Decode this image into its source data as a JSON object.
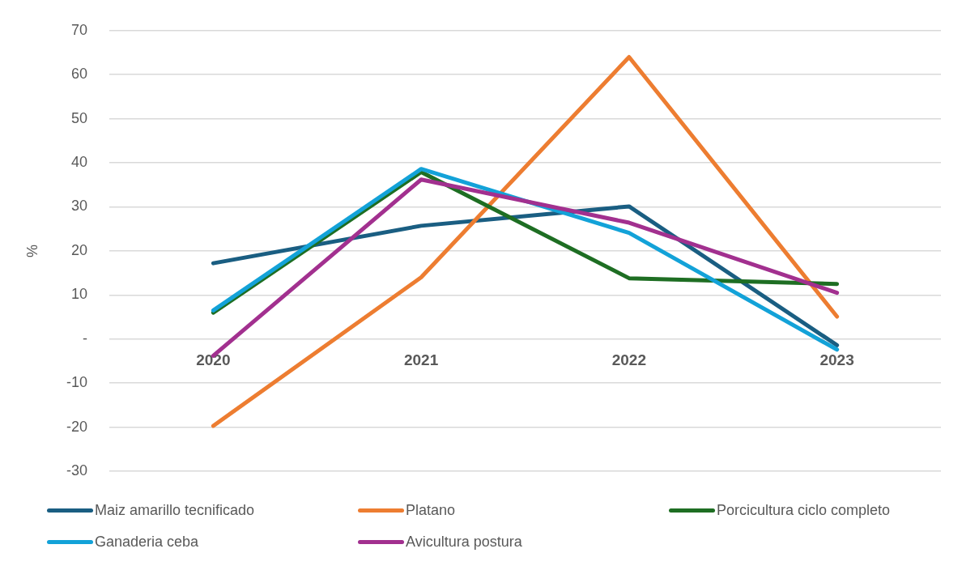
{
  "chart_data": {
    "type": "line",
    "ylabel": "%",
    "categories": [
      "2020",
      "2021",
      "2022",
      "2023"
    ],
    "series": [
      {
        "name": "Maiz amarillo tecnificado",
        "color": "#1a5e82",
        "values": [
          17.2,
          25.7,
          30.1,
          -1.4
        ]
      },
      {
        "name": "Platano",
        "color": "#ed7d31",
        "values": [
          -19.7,
          14.0,
          64.0,
          5.1
        ]
      },
      {
        "name": "Porcicultura ciclo completo",
        "color": "#1e6e23",
        "values": [
          6.0,
          37.9,
          13.8,
          12.5
        ]
      },
      {
        "name": "Ganaderia ceba",
        "color": "#13a2d8",
        "values": [
          6.5,
          38.6,
          24.1,
          -2.4
        ]
      },
      {
        "name": "Avicultura postura",
        "color": "#a2308f",
        "values": [
          -3.8,
          36.2,
          26.4,
          10.5
        ]
      }
    ],
    "ylim": [
      -30,
      70
    ],
    "yticks": [
      -30,
      -20,
      -10,
      {
        "value": 0,
        "label": "-"
      },
      10,
      20,
      30,
      40,
      50,
      60,
      70
    ],
    "grid": "y",
    "legend": "bottom",
    "marker": "none",
    "line_style": "solid"
  }
}
